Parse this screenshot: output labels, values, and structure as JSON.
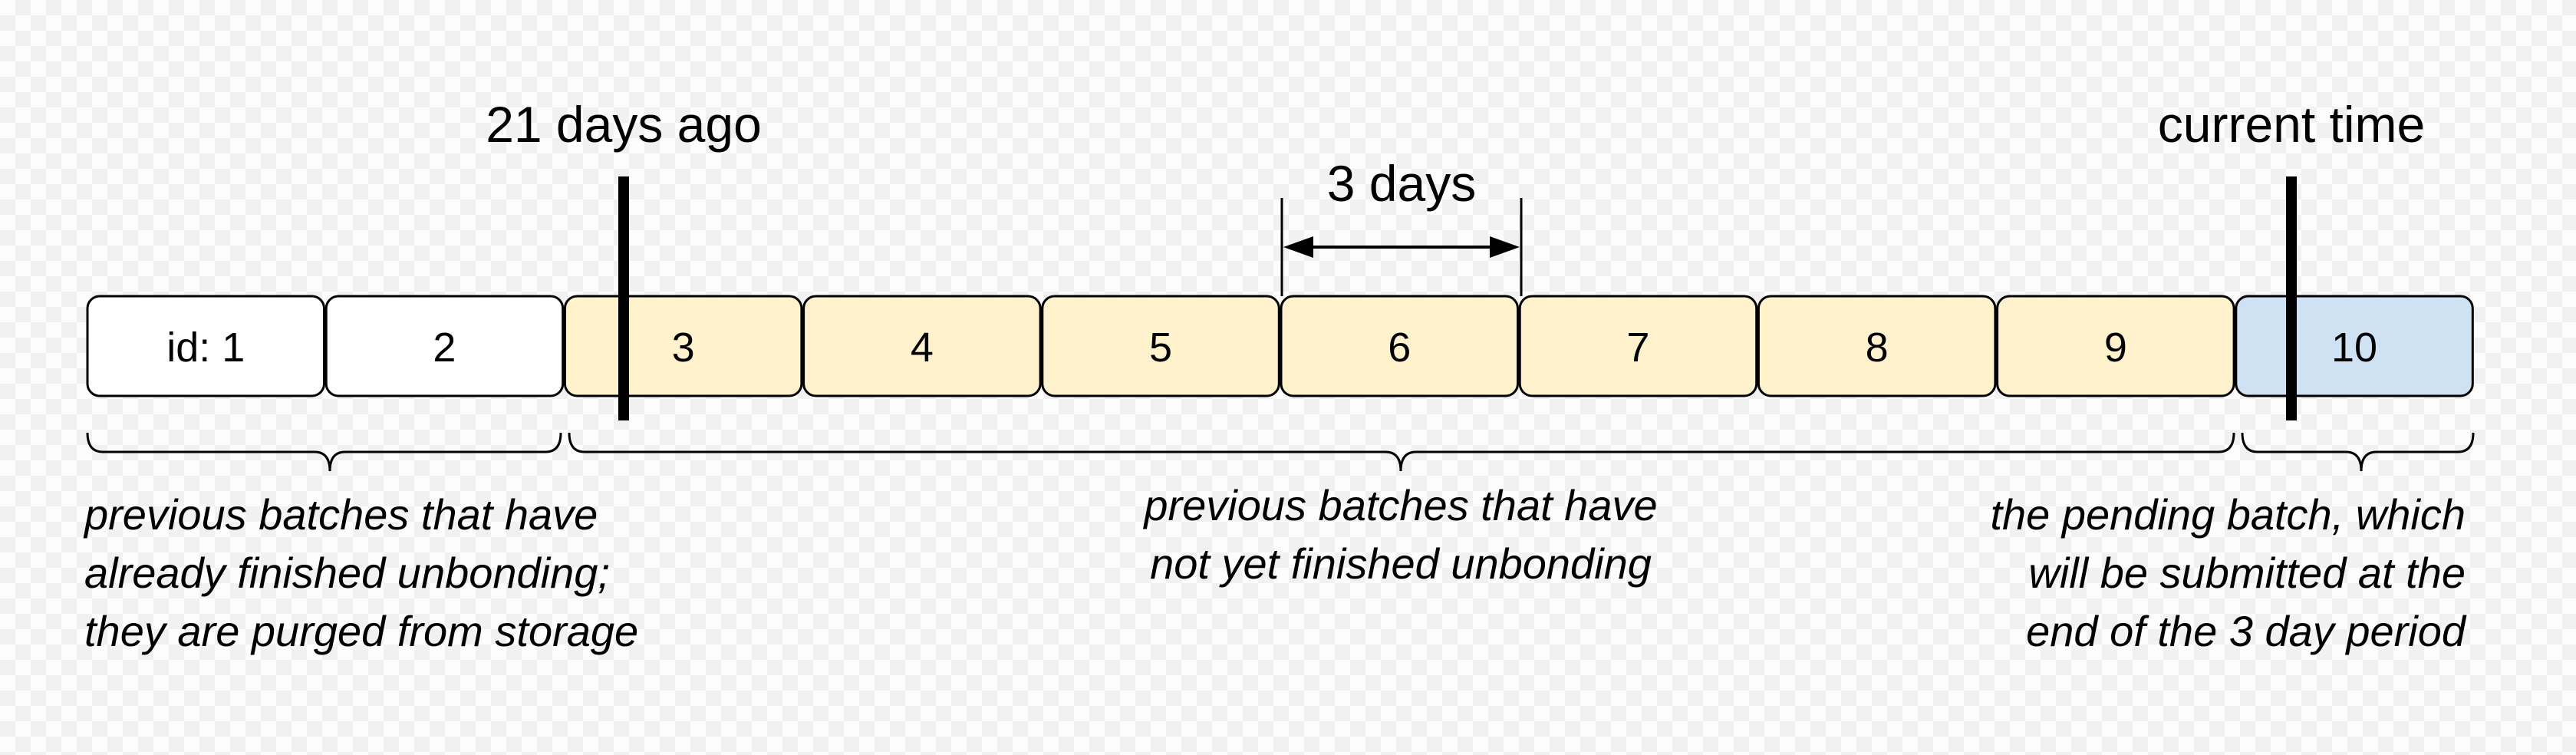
{
  "colors": {
    "purged": "#ffffff",
    "unbonding": "#fff2cc",
    "pending": "#cfe2f3",
    "stroke": "#000000"
  },
  "batches": [
    {
      "label": "id: 1",
      "state": "purged"
    },
    {
      "label": "2",
      "state": "purged"
    },
    {
      "label": "3",
      "state": "unbonding"
    },
    {
      "label": "4",
      "state": "unbonding"
    },
    {
      "label": "5",
      "state": "unbonding"
    },
    {
      "label": "6",
      "state": "unbonding"
    },
    {
      "label": "7",
      "state": "unbonding"
    },
    {
      "label": "8",
      "state": "unbonding"
    },
    {
      "label": "9",
      "state": "unbonding"
    },
    {
      "label": "10",
      "state": "pending"
    }
  ],
  "markers": {
    "past": {
      "label": "21 days ago"
    },
    "now": {
      "label": "current time"
    }
  },
  "interval": {
    "label": "3 days",
    "batch": "6"
  },
  "captions": {
    "purged": [
      "previous batches that have",
      "already finished unbonding;",
      "they are purged from storage"
    ],
    "unbonding": [
      "previous batches that have",
      "not yet finished unbonding"
    ],
    "pending": [
      "the pending batch, which",
      "will be submitted at the",
      "end of the 3 day period"
    ]
  }
}
